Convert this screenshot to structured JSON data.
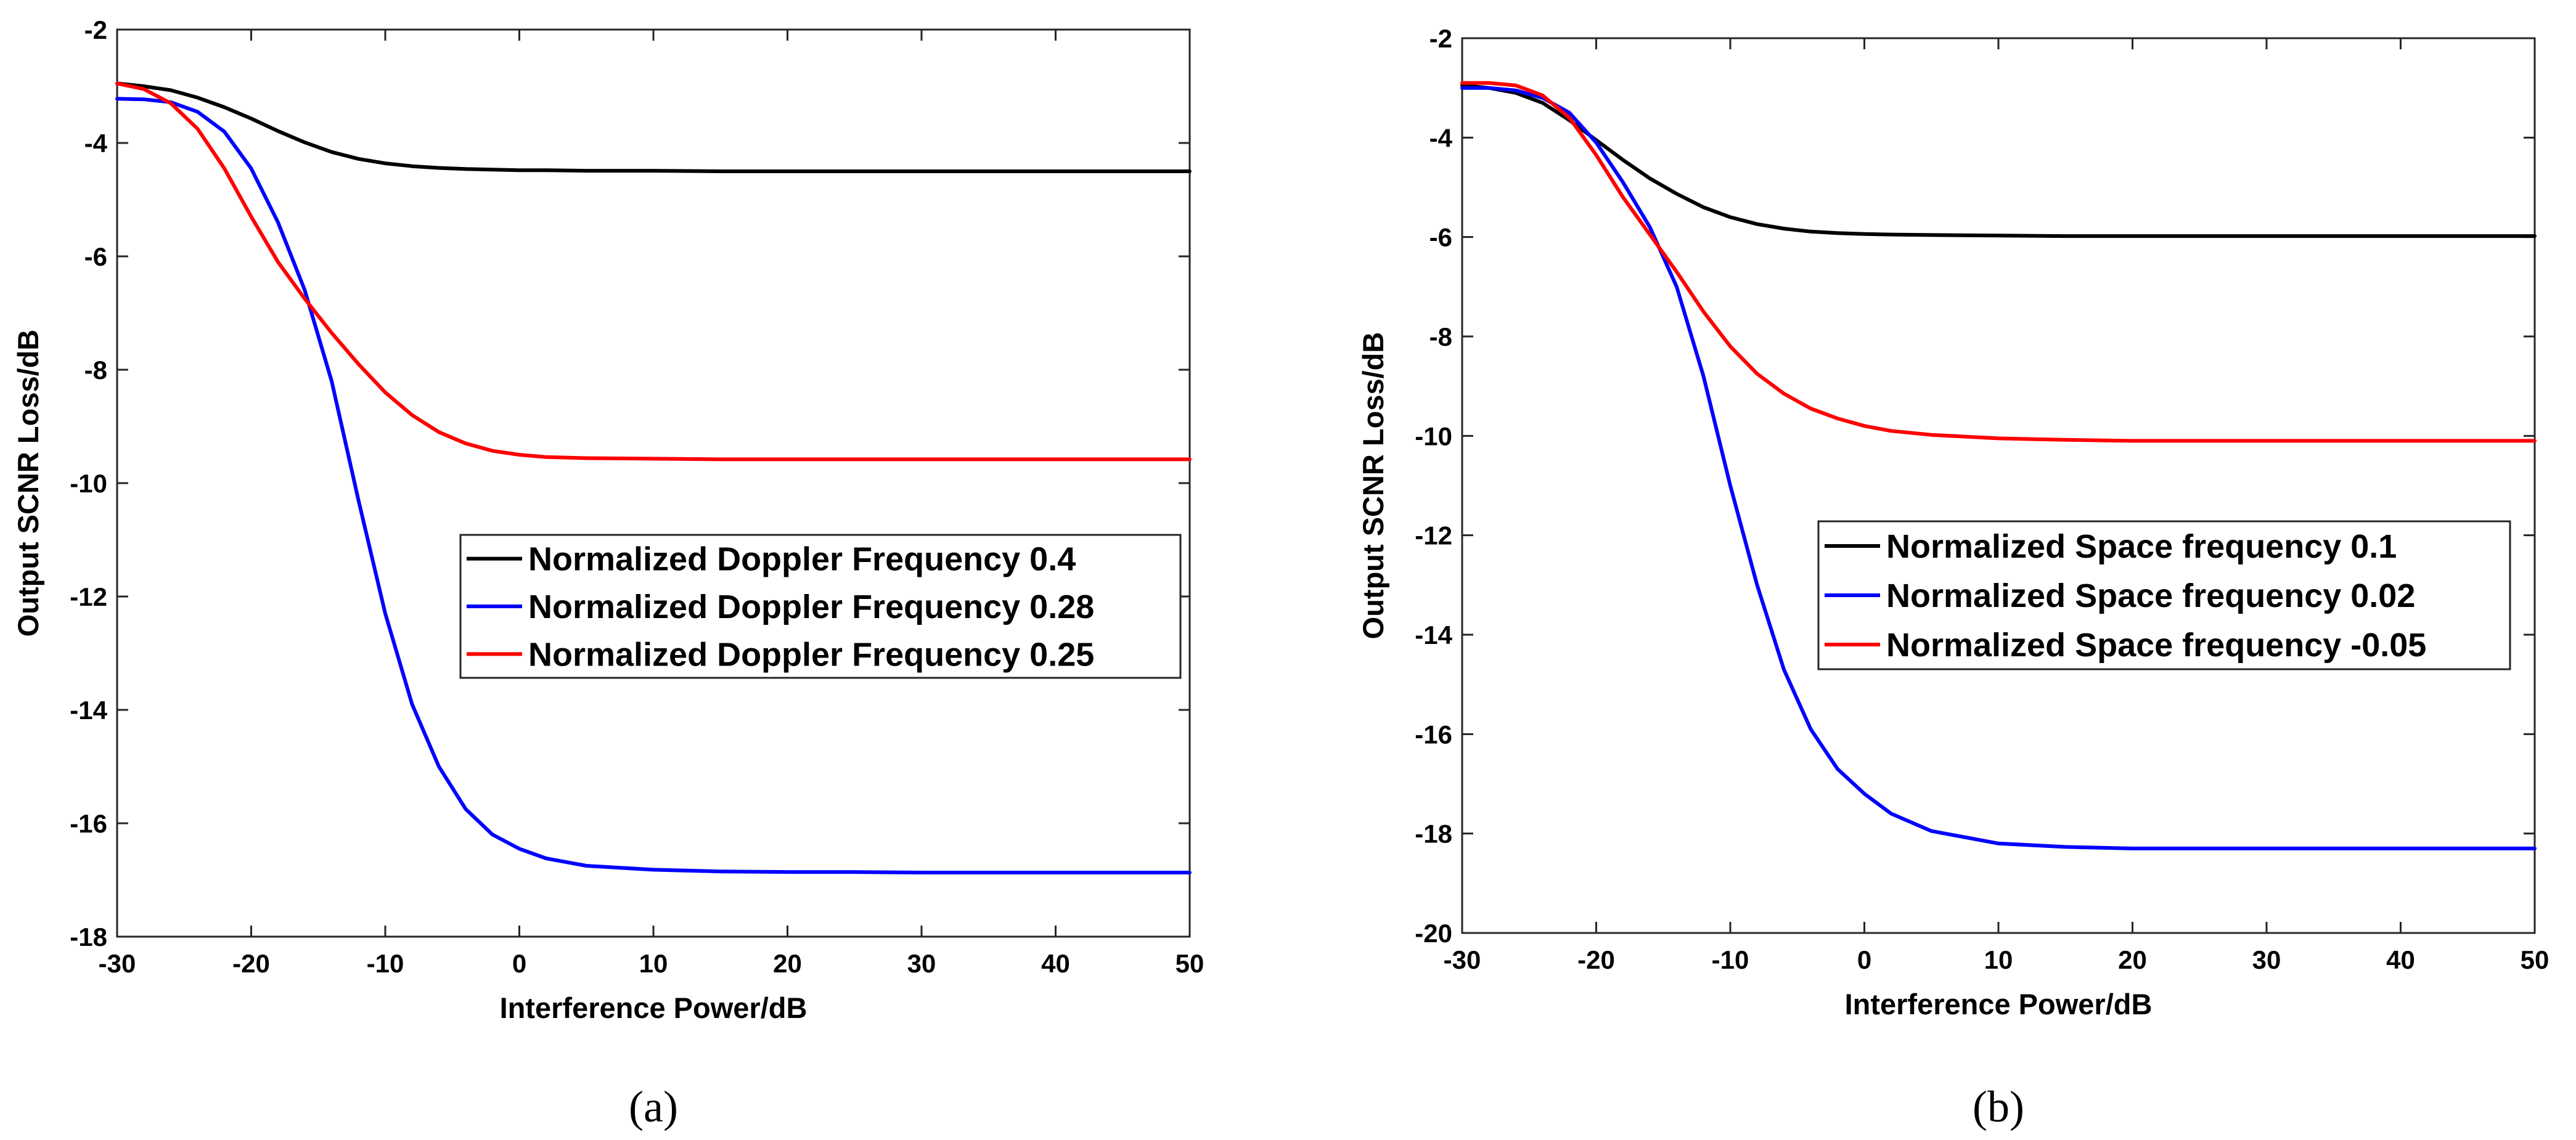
{
  "chart_data": [
    {
      "type": "line",
      "subfigure_label": "(a)",
      "xlabel": "Interference Power/dB",
      "ylabel": "Output SCNR Loss/dB",
      "xlim": [
        -30,
        50
      ],
      "ylim": [
        -18,
        -2
      ],
      "xticks": [
        "-30",
        "-20",
        "-10",
        "0",
        "10",
        "20",
        "30",
        "40",
        "50"
      ],
      "yticks": [
        "-2",
        "-4",
        "-6",
        "-8",
        "-10",
        "-12",
        "-14",
        "-16",
        "-18"
      ],
      "x": [
        -30,
        -28,
        -26,
        -24,
        -22,
        -20,
        -18,
        -16,
        -14,
        -12,
        -10,
        -8,
        -6,
        -4,
        -2,
        0,
        2,
        5,
        10,
        15,
        20,
        25,
        30,
        40,
        50
      ],
      "legend_position": "center-right",
      "series": [
        {
          "name": "Normalized Doppler Frequency 0.4",
          "color": "#000000",
          "values": [
            -2.95,
            -3.0,
            -3.07,
            -3.2,
            -3.37,
            -3.57,
            -3.79,
            -3.99,
            -4.16,
            -4.28,
            -4.36,
            -4.41,
            -4.44,
            -4.46,
            -4.47,
            -4.48,
            -4.48,
            -4.49,
            -4.49,
            -4.5,
            -4.5,
            -4.5,
            -4.5,
            -4.5,
            -4.5
          ]
        },
        {
          "name": "Normalized Doppler Frequency 0.28",
          "color": "#0000ff",
          "values": [
            -3.22,
            -3.23,
            -3.28,
            -3.45,
            -3.8,
            -4.45,
            -5.4,
            -6.6,
            -8.2,
            -10.3,
            -12.3,
            -13.9,
            -15.0,
            -15.75,
            -16.2,
            -16.45,
            -16.62,
            -16.75,
            -16.82,
            -16.85,
            -16.86,
            -16.86,
            -16.87,
            -16.87,
            -16.87
          ]
        },
        {
          "name": "Normalized Doppler Frequency 0.25",
          "color": "#ff0000",
          "values": [
            -2.95,
            -3.05,
            -3.3,
            -3.75,
            -4.45,
            -5.3,
            -6.1,
            -6.75,
            -7.35,
            -7.9,
            -8.4,
            -8.8,
            -9.1,
            -9.3,
            -9.43,
            -9.5,
            -9.54,
            -9.56,
            -9.57,
            -9.58,
            -9.58,
            -9.58,
            -9.58,
            -9.58,
            -9.58
          ]
        }
      ]
    },
    {
      "type": "line",
      "subfigure_label": "(b)",
      "xlabel": "Interference Power/dB",
      "ylabel": "Output SCNR Loss/dB",
      "xlim": [
        -30,
        50
      ],
      "ylim": [
        -20,
        -2
      ],
      "xticks": [
        "-30",
        "-20",
        "-10",
        "0",
        "10",
        "20",
        "30",
        "40",
        "50"
      ],
      "yticks": [
        "-2",
        "-4",
        "-6",
        "-8",
        "-10",
        "-12",
        "-14",
        "-16",
        "-18",
        "-20"
      ],
      "x": [
        -30,
        -28,
        -26,
        -24,
        -22,
        -20,
        -18,
        -16,
        -14,
        -12,
        -10,
        -8,
        -6,
        -4,
        -2,
        0,
        2,
        5,
        10,
        15,
        20,
        25,
        30,
        40,
        50
      ],
      "legend_position": "center-right",
      "series": [
        {
          "name": "Normalized Space frequency 0.1",
          "color": "#000000",
          "values": [
            -2.95,
            -3.0,
            -3.1,
            -3.3,
            -3.65,
            -4.05,
            -4.45,
            -4.82,
            -5.13,
            -5.4,
            -5.6,
            -5.74,
            -5.83,
            -5.89,
            -5.92,
            -5.94,
            -5.95,
            -5.96,
            -5.97,
            -5.98,
            -5.98,
            -5.98,
            -5.98,
            -5.98,
            -5.98
          ]
        },
        {
          "name": "Normalized Space frequency 0.02",
          "color": "#0000ff",
          "values": [
            -3.0,
            -3.0,
            -3.05,
            -3.2,
            -3.5,
            -4.1,
            -4.9,
            -5.8,
            -7.0,
            -8.8,
            -11.0,
            -13.0,
            -14.7,
            -15.9,
            -16.7,
            -17.2,
            -17.6,
            -17.95,
            -18.2,
            -18.27,
            -18.3,
            -18.3,
            -18.3,
            -18.3,
            -18.3
          ]
        },
        {
          "name": "Normalized Space frequency -0.05",
          "color": "#ff0000",
          "values": [
            -2.9,
            -2.9,
            -2.95,
            -3.15,
            -3.6,
            -4.35,
            -5.2,
            -5.95,
            -6.7,
            -7.5,
            -8.2,
            -8.75,
            -9.15,
            -9.45,
            -9.65,
            -9.8,
            -9.9,
            -9.98,
            -10.05,
            -10.08,
            -10.1,
            -10.1,
            -10.1,
            -10.1,
            -10.1
          ]
        }
      ]
    }
  ]
}
